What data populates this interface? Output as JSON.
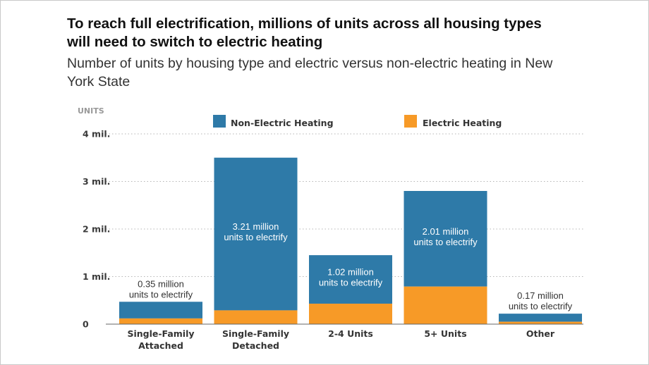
{
  "title": "To reach full electrification, millions of units across all housing types will need to switch to electric heating",
  "subtitle": "Number of units by housing type and electric versus non-electric heating in New York State",
  "colors": {
    "non_electric": "#2e7aa8",
    "electric": "#f79a27",
    "grid": "#b5b5b5"
  },
  "chart_data": {
    "type": "bar",
    "stacked": true,
    "title": "To reach full electrification, millions of units across all housing types will need to switch to electric heating",
    "subtitle": "Number of units by housing type and electric versus non-electric heating in New York State",
    "ylabel": "UNITS",
    "ylim": [
      0,
      4
    ],
    "yticks": [
      0,
      1,
      2,
      3,
      4
    ],
    "ytick_labels": [
      "0",
      "1 mil.",
      "2 mil.",
      "3 mil.",
      "4 mil."
    ],
    "grid": true,
    "legend_position": "top",
    "categories": [
      [
        "Single-Family",
        "Attached"
      ],
      [
        "Single-Family",
        "Detached"
      ],
      [
        "2-4 Units"
      ],
      [
        "5+ Units"
      ],
      [
        "Other"
      ]
    ],
    "series": [
      {
        "name": "Electric Heating",
        "values": [
          0.12,
          0.29,
          0.43,
          0.79,
          0.05
        ]
      },
      {
        "name": "Non-Electric Heating",
        "values": [
          0.35,
          3.21,
          1.02,
          2.01,
          0.17
        ]
      }
    ],
    "annotations": [
      [
        "0.35 million",
        "units to electrify"
      ],
      [
        "3.21 million",
        "units to electrify"
      ],
      [
        "1.02 million",
        "units to electrify"
      ],
      [
        "2.01 million",
        "units to electrify"
      ],
      [
        "0.17 million",
        "units to electrify"
      ]
    ],
    "annotation_inside": [
      false,
      true,
      true,
      true,
      false
    ]
  }
}
